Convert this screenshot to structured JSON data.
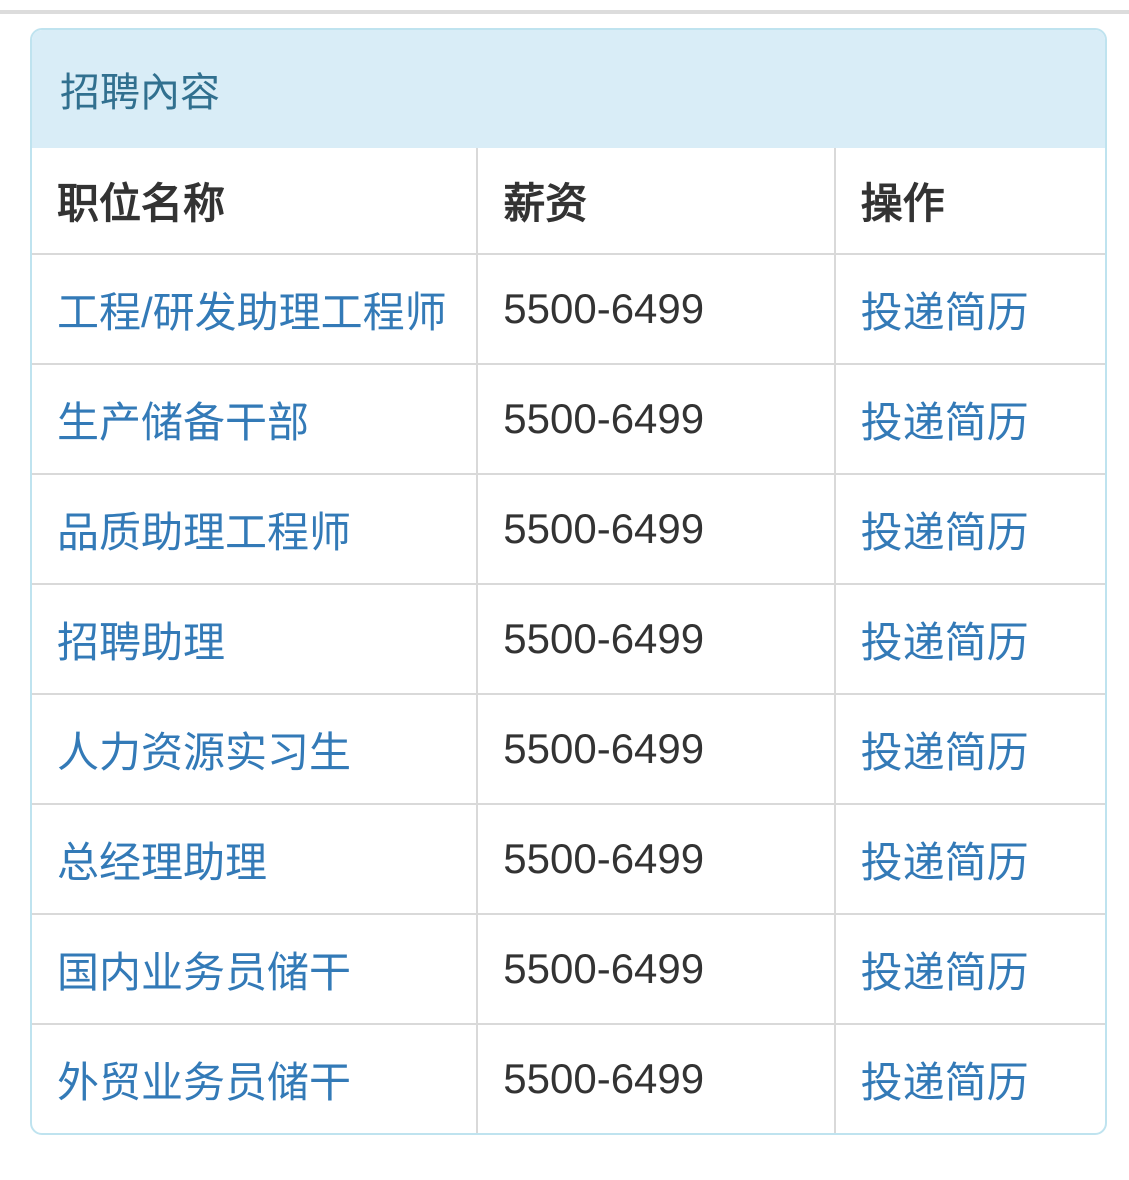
{
  "panel": {
    "title": "招聘內容",
    "table": {
      "columns": [
        "职位名称",
        "薪资",
        "操作"
      ],
      "rows": [
        {
          "position": "工程/研发助理工程师",
          "salary": "5500-6499",
          "action": "投递简历"
        },
        {
          "position": "生产储备干部",
          "salary": "5500-6499",
          "action": "投递简历"
        },
        {
          "position": "品质助理工程师",
          "salary": "5500-6499",
          "action": "投递简历"
        },
        {
          "position": "招聘助理",
          "salary": "5500-6499",
          "action": "投递简历"
        },
        {
          "position": "人力资源实习生",
          "salary": "5500-6499",
          "action": "投递简历"
        },
        {
          "position": "总经理助理",
          "salary": "5500-6499",
          "action": "投递简历"
        },
        {
          "position": "国内业务员储干",
          "salary": "5500-6499",
          "action": "投递简历"
        },
        {
          "position": "外贸业务员储干",
          "salary": "5500-6499",
          "action": "投递简历"
        }
      ]
    }
  },
  "colors": {
    "panel_border": "#bfe3ef",
    "panel_heading_bg": "#d9edf7",
    "panel_heading_text": "#31708f",
    "link": "#337ab7",
    "table_border": "#d9d9d9",
    "cell_text": "#333333",
    "top_divider": "#dcdcdc"
  }
}
